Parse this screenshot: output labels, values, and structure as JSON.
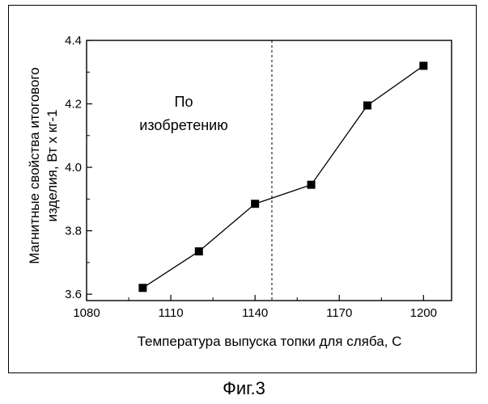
{
  "chart_data": {
    "type": "line",
    "title": "",
    "xlabel": "Температура выпуска топки для сляба,  С",
    "ylabel_line1": "Магнитные свойства итогового",
    "ylabel_line2": "изделия, Вт х кг-1",
    "xlim": [
      1080,
      1210
    ],
    "ylim": [
      3.58,
      4.4
    ],
    "x_ticks": [
      1080,
      1110,
      1140,
      1170,
      1200
    ],
    "x_tick_labels": [
      "1080",
      "1110",
      "1140",
      "1170",
      "1200"
    ],
    "y_ticks": [
      3.6,
      3.8,
      4.0,
      4.2,
      4.4
    ],
    "y_tick_labels": [
      "3.6",
      "3.8",
      "4.0",
      "4.2",
      "4.4"
    ],
    "series": [
      {
        "x": [
          1100,
          1120,
          1140,
          1160,
          1180,
          1200
        ],
        "y": [
          3.62,
          3.735,
          3.885,
          3.945,
          4.195,
          4.32
        ]
      }
    ],
    "divider_x": 1146,
    "annotation": {
      "line1": "По",
      "line2": "изобретению"
    },
    "grid": false,
    "marker": "square"
  },
  "caption": "Фиг.3"
}
